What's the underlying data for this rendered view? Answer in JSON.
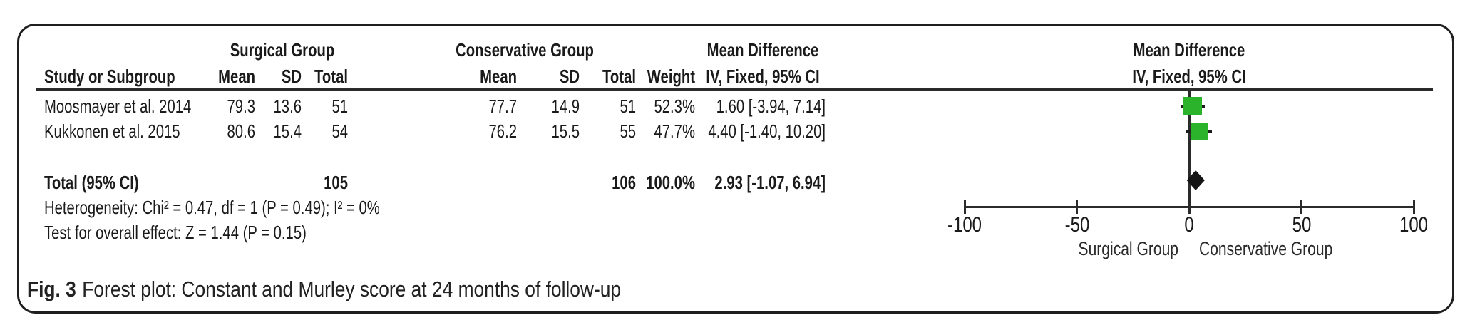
{
  "figure": {
    "caption_label": "Fig. 3",
    "caption_text": "Forest plot: Constant and Murley score at 24 months of follow-up"
  },
  "table": {
    "group_headers": {
      "surgical": "Surgical Group",
      "conservative": "Conservative Group",
      "mean_difference": "Mean Difference",
      "plot_mean_difference": "Mean Difference"
    },
    "column_headers": {
      "study": "Study or Subgroup",
      "s_mean": "Mean",
      "s_sd": "SD",
      "s_total": "Total",
      "c_mean": "Mean",
      "c_sd": "SD",
      "c_total": "Total",
      "weight": "Weight",
      "ci": "IV, Fixed, 95% CI",
      "plot_ci": "IV, Fixed, 95% CI"
    },
    "rows": [
      {
        "study": "Moosmayer et al. 2014",
        "s_mean": "79.3",
        "s_sd": "13.6",
        "s_total": "51",
        "c_mean": "77.7",
        "c_sd": "14.9",
        "c_total": "51",
        "weight": "52.3%",
        "ci": "1.60 [-3.94, 7.14]"
      },
      {
        "study": "Kukkonen et al. 2015",
        "s_mean": "80.6",
        "s_sd": "15.4",
        "s_total": "54",
        "c_mean": "76.2",
        "c_sd": "15.5",
        "c_total": "55",
        "weight": "47.7%",
        "ci": "4.40 [-1.40, 10.20]"
      }
    ],
    "total_row": {
      "label": "Total (95% CI)",
      "s_total": "105",
      "c_total": "106",
      "weight": "100.0%",
      "ci": "2.93 [-1.07, 6.94]"
    },
    "heterogeneity": "Heterogeneity: Chi² = 0.47, df = 1 (P = 0.49); I² = 0%",
    "overall_effect": "Test for overall effect: Z = 1.44 (P = 0.15)"
  },
  "chart_data": {
    "type": "forest",
    "title": "Forest plot: Constant and Murley score at 24 months of follow-up",
    "effect_measure": "Mean Difference, IV, Fixed, 95% CI",
    "x_axis": {
      "min": -100,
      "max": 100,
      "ticks": [
        -100,
        -50,
        0,
        50,
        100
      ],
      "left_label": "Surgical Group",
      "right_label": "Conservative Group"
    },
    "studies": [
      {
        "name": "Moosmayer et al. 2014",
        "estimate": 1.6,
        "ci_low": -3.94,
        "ci_high": 7.14,
        "weight_pct": 52.3
      },
      {
        "name": "Kukkonen et al. 2015",
        "estimate": 4.4,
        "ci_low": -1.4,
        "ci_high": 10.2,
        "weight_pct": 47.7
      }
    ],
    "total": {
      "label": "Total (95% CI)",
      "estimate": 2.93,
      "ci_low": -1.07,
      "ci_high": 6.94,
      "weight_pct": 100.0,
      "surgical_n": 105,
      "conservative_n": 106
    },
    "heterogeneity": {
      "chi2": 0.47,
      "df": 1,
      "p": 0.49,
      "i2_pct": 0
    },
    "overall_effect": {
      "z": 1.44,
      "p": 0.15
    }
  },
  "colors": {
    "marker_green": "#2CB32C",
    "diamond": "#141414",
    "line": "#2b2b2b",
    "text": "#1a1a1a"
  }
}
